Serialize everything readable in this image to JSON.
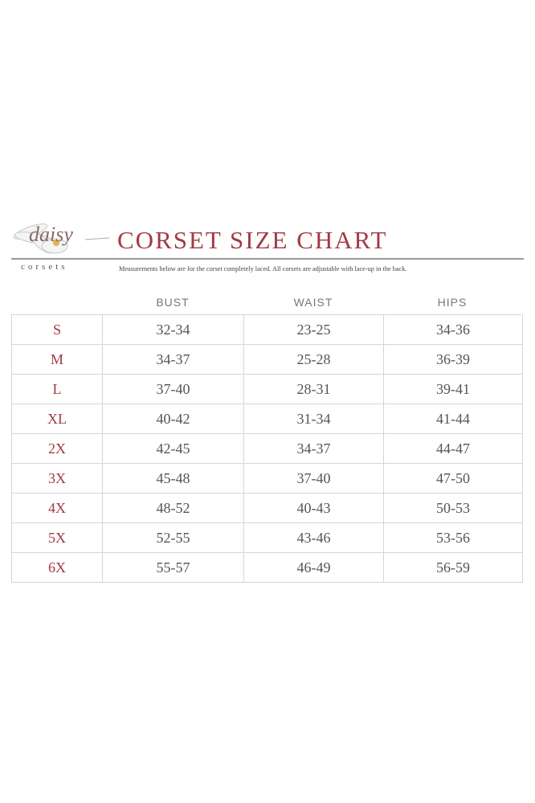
{
  "logo": {
    "script_text": "daisy",
    "brand_text": "corsets"
  },
  "title": "CORSET SIZE CHART",
  "subtitle": "Measurements below are for the corset completely laced.  All corsets are adjustable with lace-up in the back.",
  "colors": {
    "accent": "#a33a45",
    "text": "#555555",
    "border": "#d6d6d6"
  },
  "table": {
    "headers": [
      "BUST",
      "WAIST",
      "HIPS"
    ],
    "rows": [
      {
        "size": "S",
        "bust": "32-34",
        "waist": "23-25",
        "hips": "34-36"
      },
      {
        "size": "M",
        "bust": "34-37",
        "waist": "25-28",
        "hips": "36-39"
      },
      {
        "size": "L",
        "bust": "37-40",
        "waist": "28-31",
        "hips": "39-41"
      },
      {
        "size": "XL",
        "bust": "40-42",
        "waist": "31-34",
        "hips": "41-44"
      },
      {
        "size": "2X",
        "bust": "42-45",
        "waist": "34-37",
        "hips": "44-47"
      },
      {
        "size": "3X",
        "bust": "45-48",
        "waist": "37-40",
        "hips": "47-50"
      },
      {
        "size": "4X",
        "bust": "48-52",
        "waist": "40-43",
        "hips": "50-53"
      },
      {
        "size": "5X",
        "bust": "52-55",
        "waist": "43-46",
        "hips": "53-56"
      },
      {
        "size": "6X",
        "bust": "55-57",
        "waist": "46-49",
        "hips": "56-59"
      }
    ]
  }
}
